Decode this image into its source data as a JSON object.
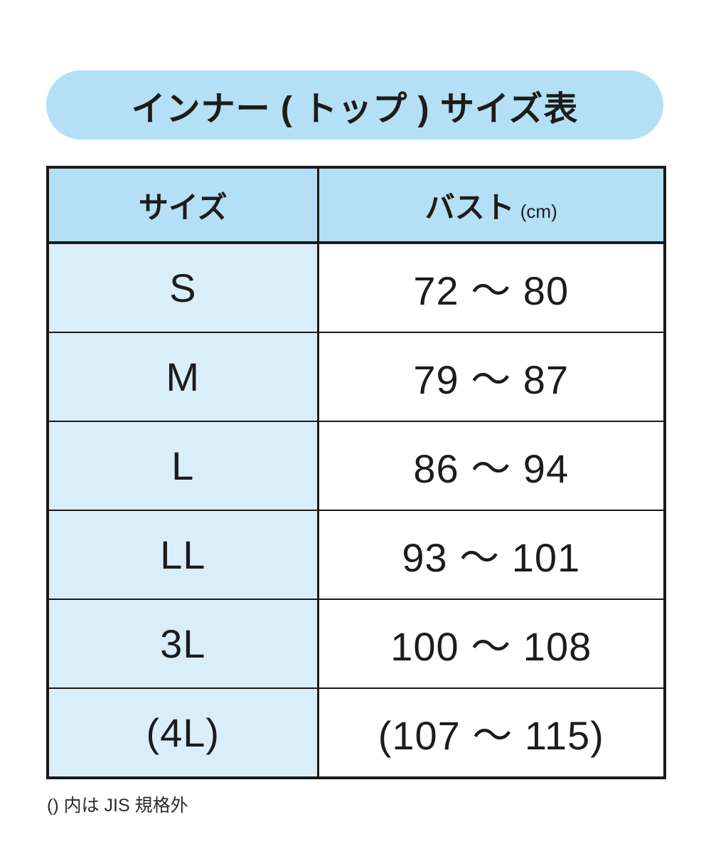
{
  "title": {
    "text": "インナー ( トップ ) サイズ表"
  },
  "table": {
    "header": {
      "size_label": "サイズ",
      "bust_label": "バスト",
      "bust_unit": "(cm)"
    },
    "rows": [
      {
        "size": "S",
        "bust": "72 ～ 80"
      },
      {
        "size": "M",
        "bust": "79 ～ 87"
      },
      {
        "size": "L",
        "bust": "86 ～ 94"
      },
      {
        "size": "LL",
        "bust": "93 ～ 101"
      },
      {
        "size": "3L",
        "bust": "100 ～ 108"
      },
      {
        "size": "(4L)",
        "bust": "(107 ～ 115)"
      }
    ]
  },
  "footnote": {
    "text": "() 内は JIS 規格外"
  },
  "colors": {
    "accent_blue": "#b4dff4",
    "light_blue": "#d9eef9",
    "border": "#1a1a1a",
    "text": "#1c1c1c"
  },
  "chart_data": {
    "type": "table",
    "title": "インナー ( トップ ) サイズ表",
    "columns": [
      "サイズ",
      "バスト (cm)"
    ],
    "rows": [
      [
        "S",
        "72 ～ 80"
      ],
      [
        "M",
        "79 ～ 87"
      ],
      [
        "L",
        "86 ～ 94"
      ],
      [
        "LL",
        "93 ～ 101"
      ],
      [
        "3L",
        "100 ～ 108"
      ],
      [
        "(4L)",
        "(107 ～ 115)"
      ]
    ],
    "note": "() 内は JIS 規格外"
  }
}
